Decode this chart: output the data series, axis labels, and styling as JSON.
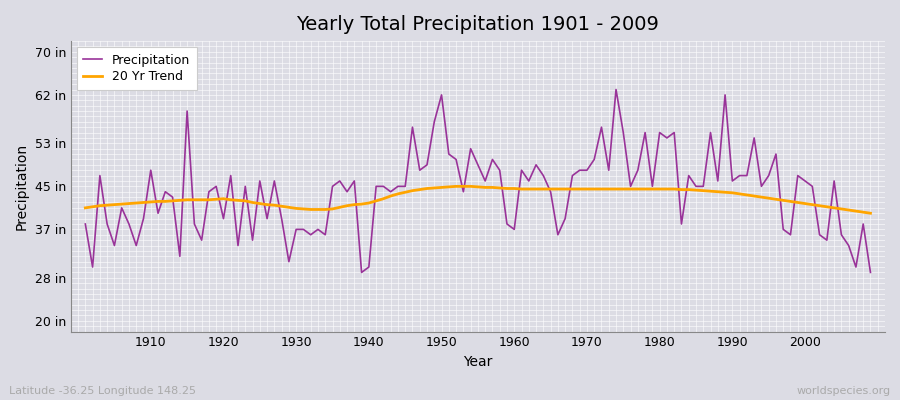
{
  "title": "Yearly Total Precipitation 1901 - 2009",
  "xlabel": "Year",
  "ylabel": "Precipitation",
  "years": [
    1901,
    1902,
    1903,
    1904,
    1905,
    1906,
    1907,
    1908,
    1909,
    1910,
    1911,
    1912,
    1913,
    1914,
    1915,
    1916,
    1917,
    1918,
    1919,
    1920,
    1921,
    1922,
    1923,
    1924,
    1925,
    1926,
    1927,
    1928,
    1929,
    1930,
    1931,
    1932,
    1933,
    1934,
    1935,
    1936,
    1937,
    1938,
    1939,
    1940,
    1941,
    1942,
    1943,
    1944,
    1945,
    1946,
    1947,
    1948,
    1949,
    1950,
    1951,
    1952,
    1953,
    1954,
    1955,
    1956,
    1957,
    1958,
    1959,
    1960,
    1961,
    1962,
    1963,
    1964,
    1965,
    1966,
    1967,
    1968,
    1969,
    1970,
    1971,
    1972,
    1973,
    1974,
    1975,
    1976,
    1977,
    1978,
    1979,
    1980,
    1981,
    1982,
    1983,
    1984,
    1985,
    1986,
    1987,
    1988,
    1989,
    1990,
    1991,
    1992,
    1993,
    1994,
    1995,
    1996,
    1997,
    1998,
    1999,
    2000,
    2001,
    2002,
    2003,
    2004,
    2005,
    2006,
    2007,
    2008,
    2009
  ],
  "precip": [
    38,
    30,
    47,
    38,
    34,
    41,
    38,
    34,
    39,
    48,
    40,
    44,
    43,
    32,
    59,
    38,
    35,
    44,
    45,
    39,
    47,
    34,
    45,
    35,
    46,
    39,
    46,
    39,
    31,
    37,
    37,
    36,
    37,
    36,
    45,
    46,
    44,
    46,
    29,
    30,
    45,
    45,
    44,
    45,
    45,
    56,
    48,
    49,
    57,
    62,
    51,
    50,
    44,
    52,
    49,
    46,
    50,
    48,
    38,
    37,
    48,
    46,
    49,
    47,
    44,
    36,
    39,
    47,
    48,
    48,
    50,
    56,
    48,
    63,
    55,
    45,
    48,
    55,
    45,
    55,
    54,
    55,
    38,
    47,
    45,
    45,
    55,
    46,
    62,
    46,
    47,
    47,
    54,
    45,
    47,
    51,
    37,
    36,
    47,
    46,
    45,
    36,
    35,
    46,
    36,
    34,
    30,
    38,
    29
  ],
  "trend": [
    41.0,
    41.2,
    41.4,
    41.5,
    41.6,
    41.7,
    41.8,
    41.9,
    42.0,
    42.1,
    42.2,
    42.2,
    42.3,
    42.4,
    42.5,
    42.5,
    42.5,
    42.5,
    42.6,
    42.7,
    42.5,
    42.4,
    42.3,
    42.0,
    41.8,
    41.6,
    41.5,
    41.3,
    41.1,
    40.9,
    40.8,
    40.7,
    40.7,
    40.7,
    40.8,
    41.1,
    41.4,
    41.6,
    41.7,
    41.9,
    42.3,
    42.7,
    43.2,
    43.6,
    43.9,
    44.2,
    44.4,
    44.6,
    44.7,
    44.8,
    44.9,
    45.0,
    45.0,
    45.0,
    44.9,
    44.8,
    44.8,
    44.7,
    44.6,
    44.6,
    44.5,
    44.5,
    44.5,
    44.5,
    44.5,
    44.5,
    44.5,
    44.5,
    44.5,
    44.5,
    44.5,
    44.5,
    44.5,
    44.5,
    44.5,
    44.5,
    44.5,
    44.5,
    44.5,
    44.5,
    44.5,
    44.5,
    44.4,
    44.4,
    44.3,
    44.2,
    44.1,
    44.0,
    43.9,
    43.8,
    43.6,
    43.4,
    43.2,
    43.0,
    42.8,
    42.6,
    42.4,
    42.2,
    42.0,
    41.8,
    41.6,
    41.4,
    41.2,
    41.0,
    40.8,
    40.6,
    40.4,
    40.2,
    40.0
  ],
  "precip_color": "#993399",
  "trend_color": "#FFA500",
  "bg_color": "#dcdce4",
  "plot_bg_color": "#dcdce4",
  "grid_color": "#ffffff",
  "ytick_labels": [
    "20 in",
    "28 in",
    "37 in",
    "45 in",
    "53 in",
    "62 in",
    "70 in"
  ],
  "ytick_values": [
    20,
    28,
    37,
    45,
    53,
    62,
    70
  ],
  "ylim": [
    18,
    72
  ],
  "xlim": [
    1899,
    2011
  ],
  "xtick_vals": [
    1910,
    1920,
    1930,
    1940,
    1950,
    1960,
    1970,
    1980,
    1990,
    2000
  ],
  "subtitle": "Latitude -36.25 Longitude 148.25",
  "watermark": "worldspecies.org",
  "title_fontsize": 14,
  "axis_label_fontsize": 10,
  "tick_fontsize": 9
}
